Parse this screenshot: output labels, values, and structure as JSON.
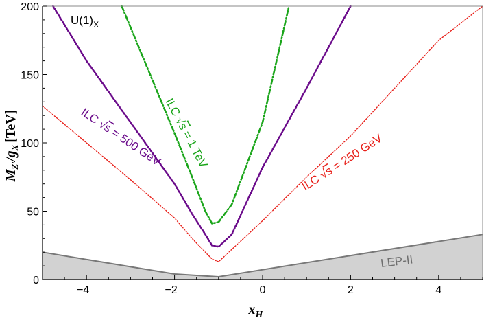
{
  "chart_data": {
    "type": "line",
    "xlabel": "x_H",
    "ylabel": "M_Z'/g_X [TeV]",
    "xlim": [
      -5,
      5
    ],
    "ylim": [
      0,
      200
    ],
    "x_ticks": [
      -4,
      -2,
      0,
      2,
      4
    ],
    "y_ticks": [
      0,
      50,
      100,
      150,
      200
    ],
    "grid": false,
    "title_label": "U(1)_X",
    "series": [
      {
        "name": "ILC √s = 250 GeV",
        "color": "#e8201a",
        "style": "dotted",
        "x": [
          -5,
          -4,
          -3,
          -2,
          -1.6,
          -1.3,
          -1.15,
          -1,
          -0.7,
          0,
          1,
          2,
          3,
          4,
          5
        ],
        "y": [
          127,
          100,
          73,
          45,
          30,
          20,
          15,
          13,
          22,
          43,
          75,
          105,
          140,
          175,
          200
        ]
      },
      {
        "name": "ILC √s = 500 GeV",
        "color": "#6a0a8a",
        "style": "dotted",
        "x": [
          -4.76,
          -4,
          -3,
          -2,
          -1.6,
          -1.3,
          -1.15,
          -1,
          -0.7,
          0,
          1,
          2
        ],
        "y": [
          200,
          160,
          115,
          70,
          48,
          33,
          25,
          24,
          33,
          82,
          140,
          200
        ]
      },
      {
        "name": "ILC √s = 1 TeV",
        "color": "#1aa51a",
        "style": "dashdot",
        "x": [
          -3.2,
          -2,
          -1.6,
          -1.3,
          -1.15,
          -1,
          -0.7,
          0,
          0.6
        ],
        "y": [
          200,
          107,
          75,
          50,
          41,
          42,
          55,
          115,
          200
        ]
      },
      {
        "name": "LEP-II",
        "color": "#787878",
        "style": "solid-filled",
        "x": [
          -5,
          -2,
          -1,
          5
        ],
        "y": [
          20,
          4,
          2,
          33
        ]
      }
    ],
    "labels": {
      "u1x": "U(1)_X",
      "ilc250": "ILC √s = 250 GeV",
      "ilc500": "ILC √s = 500 GeV",
      "ilc1tev": "ILC √s = 1 TeV",
      "lep": "LEP-II"
    }
  }
}
